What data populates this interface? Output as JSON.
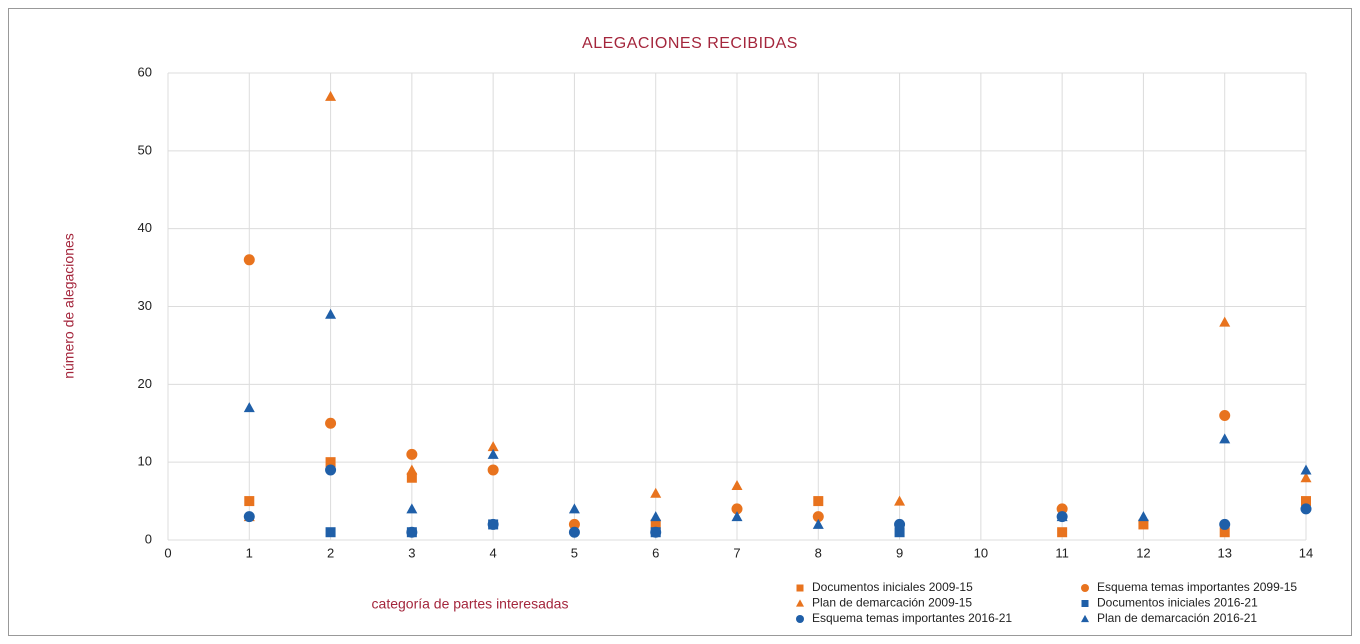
{
  "chart_data": {
    "type": "scatter",
    "title": "ALEGACIONES RECIBIDAS",
    "x_label": "categoría de partes interesadas",
    "y_label": "número de alegaciones",
    "xlim": [
      0,
      14
    ],
    "xticks": [
      0,
      1,
      2,
      3,
      4,
      5,
      6,
      7,
      8,
      9,
      10,
      11,
      12,
      13,
      14
    ],
    "ylim": [
      0,
      60
    ],
    "yticks": [
      0,
      10,
      20,
      30,
      40,
      50,
      60
    ],
    "grid": true,
    "series": [
      {
        "name": "Documentos iniciales 2009-15",
        "color": "#e8731e",
        "marker": "square",
        "x": [
          1,
          2,
          3,
          6,
          8,
          11,
          12,
          13,
          14
        ],
        "values": [
          5,
          10,
          8,
          2,
          5,
          1,
          2,
          1,
          5
        ]
      },
      {
        "name": "Esquema temas importantes 2099-15",
        "color": "#e8731e",
        "marker": "circle",
        "x": [
          1,
          2,
          3,
          4,
          5,
          7,
          8,
          11,
          13
        ],
        "values": [
          36,
          15,
          11,
          9,
          2,
          4,
          3,
          4,
          16
        ]
      },
      {
        "name": "Plan de demarcación 2009-15",
        "color": "#e8731e",
        "marker": "triangle",
        "x": [
          1,
          2,
          3,
          4,
          6,
          7,
          9,
          13,
          14
        ],
        "values": [
          3,
          57,
          9,
          12,
          6,
          7,
          5,
          28,
          8
        ]
      },
      {
        "name": "Documentos iniciales 2016-21",
        "color": "#1f5fa8",
        "marker": "square",
        "x": [
          2,
          3,
          4,
          6,
          9
        ],
        "values": [
          1,
          1,
          2,
          1,
          1
        ]
      },
      {
        "name": "Esquema temas importantes 2016-21",
        "color": "#1f5fa8",
        "marker": "circle",
        "x": [
          1,
          2,
          3,
          4,
          5,
          6,
          9,
          11,
          13,
          14
        ],
        "values": [
          3,
          9,
          1,
          2,
          1,
          1,
          2,
          3,
          2,
          4
        ]
      },
      {
        "name": "Plan de demarcación 2016-21",
        "color": "#1f5fa8",
        "marker": "triangle",
        "x": [
          1,
          2,
          3,
          4,
          5,
          6,
          7,
          8,
          11,
          12,
          13,
          14
        ],
        "values": [
          17,
          29,
          4,
          11,
          4,
          3,
          3,
          2,
          3,
          3,
          13,
          9
        ]
      }
    ]
  }
}
